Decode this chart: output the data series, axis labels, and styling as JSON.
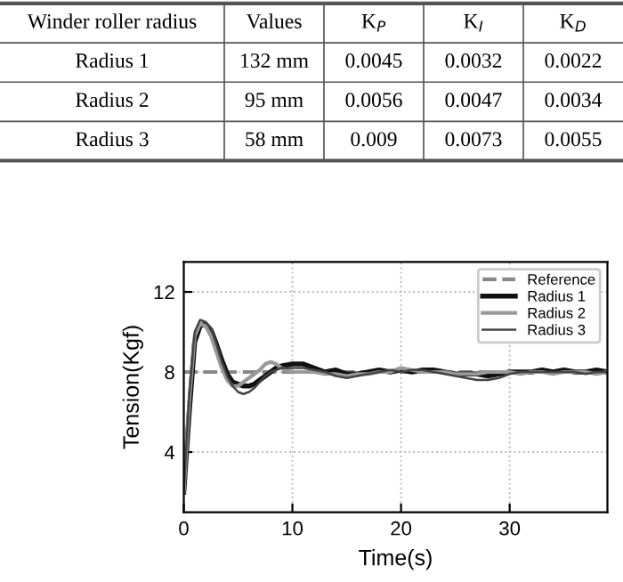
{
  "chart_data": [
    {
      "type": "other",
      "categories": [
        "Winder roller radius",
        "Values",
        "K$_{P}$",
        "K$_{I}$",
        "K$_{D}$"
      ],
      "cell_labels": [
        [
          "Radius 1",
          "132 mm",
          "0.0045",
          "0.0032",
          "0.0022"
        ],
        [
          "Radius 2",
          "95 mm",
          "0.0056",
          "0.0047",
          "0.0034"
        ],
        [
          "Radius 3",
          "58 mm",
          "0.009",
          "0.0073",
          "0.0055"
        ]
      ]
    },
    {
      "type": "line",
      "xlabel": "Time(s)",
      "ylabel": "Tension(Kgf)",
      "x": [
        0,
        0.5,
        1,
        1.5,
        2,
        2.5,
        3,
        3.5,
        4,
        4.5,
        5,
        5.5,
        6,
        6.5,
        7,
        7.5,
        8,
        8.5,
        9,
        10,
        11,
        12,
        13,
        14,
        15,
        16,
        17,
        18,
        19,
        20,
        21,
        22,
        23,
        24,
        25,
        26,
        27,
        28,
        29,
        30,
        31,
        32,
        33,
        34,
        35,
        36,
        37,
        38,
        39
      ],
      "series": [
        {
          "name": "Radius 1",
          "color": "#111111",
          "values": [
            2,
            6,
            9.5,
            10.3,
            10.4,
            10.1,
            9.4,
            8.6,
            7.9,
            7.5,
            7.4,
            7.3,
            7.3,
            7.4,
            7.6,
            7.8,
            8.0,
            8.2,
            8.3,
            8.4,
            8.4,
            8.2,
            8.0,
            8.1,
            7.9,
            7.9,
            8.0,
            8.1,
            8.0,
            8.1,
            8.0,
            8.1,
            8.1,
            8.0,
            7.9,
            7.9,
            7.9,
            7.8,
            7.9,
            8.0,
            8.0,
            8.0,
            8.1,
            8.0,
            8.1,
            8.0,
            8.0,
            8.1,
            8.0
          ]
        },
        {
          "name": "Radius 2",
          "color": "#999999",
          "values": [
            2,
            6.5,
            9.8,
            10.4,
            10.3,
            9.8,
            9.0,
            8.2,
            7.6,
            7.3,
            7.3,
            7.5,
            7.7,
            7.9,
            8.1,
            8.4,
            8.5,
            8.4,
            8.2,
            8.0,
            8.0,
            8.0,
            7.9,
            7.9,
            7.8,
            7.9,
            7.9,
            8.0,
            8.0,
            8.2,
            8.1,
            8.0,
            8.0,
            8.0,
            7.9,
            7.9,
            7.9,
            8.0,
            8.0,
            8.0,
            7.9,
            8.0,
            8.0,
            7.9,
            8.0,
            8.0,
            8.0,
            7.9,
            8.0
          ]
        },
        {
          "name": "Radius 3",
          "color": "#444444",
          "values": [
            2,
            6.8,
            10.0,
            10.6,
            10.5,
            10.2,
            9.4,
            8.5,
            7.8,
            7.3,
            7.0,
            6.9,
            7.0,
            7.2,
            7.5,
            7.8,
            8.0,
            8.1,
            8.2,
            8.2,
            8.2,
            8.1,
            8.0,
            7.8,
            7.7,
            7.8,
            7.9,
            8.0,
            8.1,
            8.0,
            8.1,
            8.1,
            8.0,
            7.9,
            7.8,
            7.7,
            7.6,
            7.6,
            7.7,
            7.9,
            8.0,
            8.0,
            8.0,
            8.0,
            8.0,
            8.0,
            7.9,
            8.0,
            8.0
          ]
        }
      ],
      "ref_lines": [
        {
          "axis": "y",
          "value": 8,
          "label": "Reference",
          "color": "#888888",
          "line_style": "dashed"
        }
      ],
      "xlim": [
        0,
        39
      ],
      "xticks": [
        0,
        10,
        20,
        30
      ],
      "ylim": [
        1,
        13.5
      ],
      "yticks": [
        4,
        8,
        12
      ],
      "grid": true,
      "legend": "top right",
      "line_style": "solid",
      "marker": "none"
    }
  ]
}
